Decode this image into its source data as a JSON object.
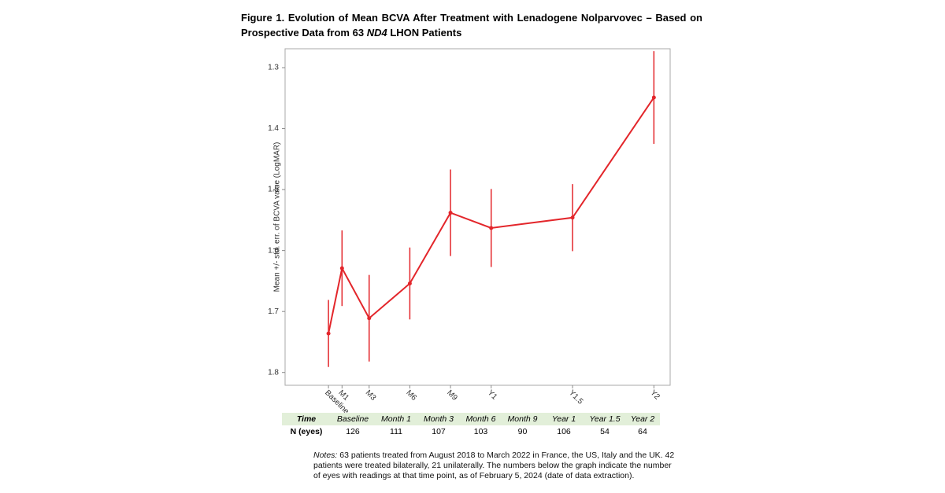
{
  "chart_data": {
    "type": "line",
    "title": [
      "Figure 1. Evolution of Mean BCVA After Treatment with Lenadogene Nolparvovec – Based on Prospective Data from 63 ",
      "ND4",
      " LHON Patients"
    ],
    "y_label": "Mean +/- std. err. of BCVA value (LogMAR)",
    "x": [
      0,
      1,
      3,
      6,
      9,
      12,
      18,
      24
    ],
    "series": [
      {
        "color": "#e3262b",
        "values": [
          1.736,
          1.629,
          1.711,
          1.654,
          1.538,
          1.563,
          1.546,
          1.349
        ],
        "errors": [
          0.055,
          0.062,
          0.071,
          0.059,
          0.071,
          0.064,
          0.055,
          0.076
        ]
      }
    ],
    "xlim": [
      -3.2,
      25.2
    ],
    "xticks": [
      {
        "value": 0,
        "label": "Baseline"
      },
      {
        "value": 1,
        "label": "M1"
      },
      {
        "value": 3,
        "label": "M3"
      },
      {
        "value": 6,
        "label": "M6"
      },
      {
        "value": 9,
        "label": "M9"
      },
      {
        "value": 12,
        "label": "Y1"
      },
      {
        "value": 18,
        "label": "Y1.5"
      },
      {
        "value": 24,
        "label": "Y2"
      }
    ],
    "ylim": [
      1.821,
      1.269
    ],
    "yticks": [
      1.3,
      1.4,
      1.5,
      1.6,
      1.7,
      1.8
    ],
    "grid": false
  },
  "table": {
    "header": [
      "Time",
      "Baseline",
      "Month 1",
      "Month 3",
      "Month 6",
      "Month 9",
      "Year 1",
      "Year 1.5",
      "Year 2"
    ],
    "rows": [
      [
        "N (eyes)",
        126,
        111,
        107,
        103,
        90,
        106,
        54,
        64
      ]
    ]
  },
  "notes": [
    "Notes:",
    " 63 patients treated from August 2018 to March 2022 in France, the US, Italy and the UK. 42 patients were treated bilaterally, 21 unilaterally. The numbers below the graph indicate the number of eyes with readings at that time point, as of February 5, 2024 (date of data extraction)."
  ]
}
